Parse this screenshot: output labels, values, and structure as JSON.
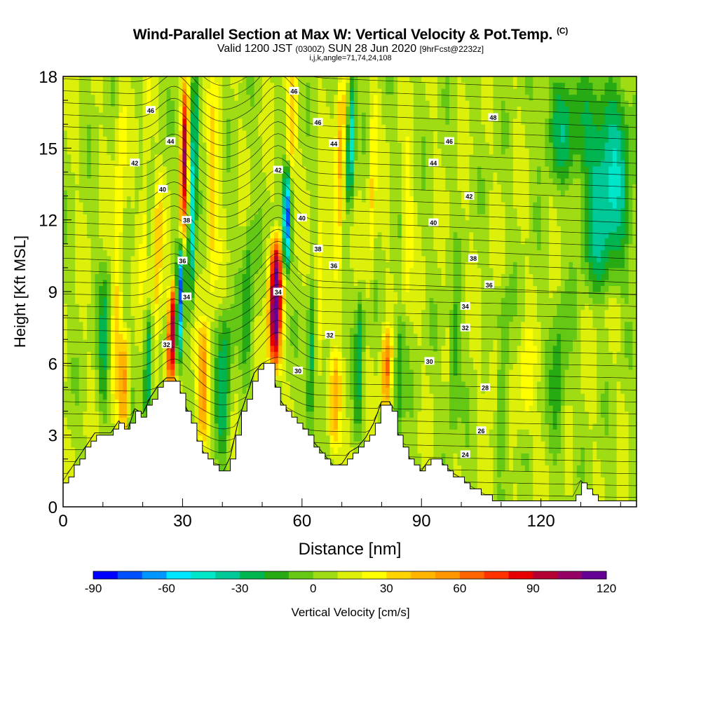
{
  "header": {
    "title": "Wind-Parallel Section at Max W: Vertical Velocity & Pot.Temp.",
    "copyright": "(C)",
    "valid_main": "Valid 1200 JST",
    "valid_utc": "(0300Z)",
    "valid_date": "SUN 28 Jun 2020",
    "forecast": "[9hrFcst@2232z]",
    "params": "i,j,k,angle=71,74,24,108"
  },
  "chart_data": {
    "type": "heatmap",
    "xlabel": "Distance [nm]",
    "ylabel": "Height [Kft MSL]",
    "xlim": [
      0,
      144
    ],
    "ylim": [
      0,
      18
    ],
    "xticks": [
      0,
      30,
      60,
      90,
      120
    ],
    "yticks": [
      0,
      3,
      6,
      9,
      12,
      15,
      18
    ],
    "colorbar": {
      "label": "Vertical Velocity [cm/s]",
      "min": -90,
      "max": 120,
      "step": 10,
      "ticks": [
        -90,
        -60,
        -30,
        0,
        30,
        60,
        90,
        120
      ],
      "colors": [
        "#0000ff",
        "#0050ff",
        "#0096ff",
        "#00e6ff",
        "#00e6c8",
        "#00c896",
        "#00b450",
        "#28aa14",
        "#64c814",
        "#a0dc14",
        "#dcf00a",
        "#ffff00",
        "#ffd200",
        "#ffb400",
        "#ff9600",
        "#ff6400",
        "#ff3200",
        "#e60000",
        "#b40032",
        "#960064",
        "#640096"
      ]
    },
    "terrain": [
      [
        0,
        1.0
      ],
      [
        2,
        1.5
      ],
      [
        4,
        2.0
      ],
      [
        6,
        2.5
      ],
      [
        8,
        3.0
      ],
      [
        12,
        3.0
      ],
      [
        14,
        3.5
      ],
      [
        16,
        3.0
      ],
      [
        18,
        4.0
      ],
      [
        20,
        3.8
      ],
      [
        22,
        4.5
      ],
      [
        24,
        5.0
      ],
      [
        26,
        5.3
      ],
      [
        28,
        5.3
      ],
      [
        30,
        4.5
      ],
      [
        32,
        3.5
      ],
      [
        34,
        2.5
      ],
      [
        36,
        2.0
      ],
      [
        38,
        1.6
      ],
      [
        40,
        1.3
      ],
      [
        42,
        2.0
      ],
      [
        44,
        3.5
      ],
      [
        46,
        4.5
      ],
      [
        48,
        5.5
      ],
      [
        50,
        5.9
      ],
      [
        52,
        5.9
      ],
      [
        54,
        4.5
      ],
      [
        56,
        4.0
      ],
      [
        58,
        3.5
      ],
      [
        60,
        3.2
      ],
      [
        62,
        2.8
      ],
      [
        64,
        2.4
      ],
      [
        66,
        2.0
      ],
      [
        68,
        1.6
      ],
      [
        70,
        1.7
      ],
      [
        72,
        2.2
      ],
      [
        74,
        2.4
      ],
      [
        76,
        2.8
      ],
      [
        78,
        3.4
      ],
      [
        80,
        4.3
      ],
      [
        82,
        4.3
      ],
      [
        84,
        3.0
      ],
      [
        86,
        2.2
      ],
      [
        88,
        1.7
      ],
      [
        90,
        1.4
      ],
      [
        92,
        1.9
      ],
      [
        94,
        1.9
      ],
      [
        96,
        1.6
      ],
      [
        98,
        1.3
      ],
      [
        100,
        1.1
      ],
      [
        102,
        0.8
      ],
      [
        104,
        0.6
      ],
      [
        106,
        0.4
      ],
      [
        108,
        0.3
      ],
      [
        110,
        0.3
      ],
      [
        120,
        0.3
      ],
      [
        128,
        0.3
      ],
      [
        130,
        1.0
      ],
      [
        132,
        0.6
      ],
      [
        134,
        0.3
      ],
      [
        144,
        0.3
      ]
    ],
    "updrafts": [
      {
        "x": 13,
        "h0": 3.5,
        "h1": 18,
        "w": 1.3,
        "amp": 25
      },
      {
        "x": 15,
        "h0": 3.0,
        "h1": 7.0,
        "w": 1.2,
        "amp": 45
      },
      {
        "x": 20,
        "h0": 9.0,
        "h1": 18,
        "w": 1.0,
        "amp": 20
      },
      {
        "x": 23,
        "h0": 5.0,
        "h1": 14,
        "w": 1.2,
        "amp": 30
      },
      {
        "x": 27,
        "h0": 5.3,
        "h1": 9.0,
        "w": 0.9,
        "amp": 95
      },
      {
        "x": 30,
        "h0": 11,
        "h1": 18,
        "w": 0.9,
        "amp": 85
      },
      {
        "x": 35,
        "h0": 3.0,
        "h1": 7.5,
        "w": 1.5,
        "amp": 50
      },
      {
        "x": 37,
        "h0": 8.0,
        "h1": 18,
        "w": 1.5,
        "amp": 25
      },
      {
        "x": 53,
        "h0": 5.9,
        "h1": 11,
        "w": 1.6,
        "amp": 115
      },
      {
        "x": 57,
        "h0": 13,
        "h1": 18,
        "w": 1.2,
        "amp": 30
      },
      {
        "x": 64,
        "h0": 6.0,
        "h1": 13,
        "w": 1.2,
        "amp": 25
      },
      {
        "x": 68,
        "h0": 2.5,
        "h1": 6.0,
        "w": 1.5,
        "amp": 45
      },
      {
        "x": 69,
        "h0": 10,
        "h1": 18,
        "w": 1.2,
        "amp": 40
      },
      {
        "x": 77,
        "h0": 9.0,
        "h1": 18,
        "w": 1.0,
        "amp": 25
      },
      {
        "x": 81,
        "h0": 4.3,
        "h1": 7.0,
        "w": 1.2,
        "amp": 55
      },
      {
        "x": 86,
        "h0": 8.0,
        "h1": 15,
        "w": 1.2,
        "amp": 20
      },
      {
        "x": 108,
        "h0": 4.0,
        "h1": 7.0,
        "w": 1.5,
        "amp": 20
      },
      {
        "x": 116,
        "h0": 3.0,
        "h1": 7.0,
        "w": 2.0,
        "amp": 20
      }
    ],
    "downdrafts": [
      {
        "x": 10,
        "h0": 4.0,
        "h1": 10,
        "w": 1.5,
        "amp": -30
      },
      {
        "x": 21,
        "h0": 3.0,
        "h1": 8.0,
        "w": 1.0,
        "amp": -40
      },
      {
        "x": 29,
        "h0": 6.0,
        "h1": 11,
        "w": 0.8,
        "amp": -75
      },
      {
        "x": 32,
        "h0": 8.0,
        "h1": 18,
        "w": 0.9,
        "amp": -60
      },
      {
        "x": 40,
        "h0": 2.0,
        "h1": 8.0,
        "w": 1.8,
        "amp": -40
      },
      {
        "x": 46,
        "h0": 5.0,
        "h1": 12,
        "w": 1.5,
        "amp": -30
      },
      {
        "x": 56,
        "h0": 10,
        "h1": 14,
        "w": 1.0,
        "amp": -80
      },
      {
        "x": 62,
        "h0": 3.0,
        "h1": 9.0,
        "w": 1.2,
        "amp": -40
      },
      {
        "x": 72,
        "h0": 13,
        "h1": 18,
        "w": 1.0,
        "amp": -60
      },
      {
        "x": 74,
        "h0": 3.0,
        "h1": 9.0,
        "w": 1.0,
        "amp": -35
      },
      {
        "x": 84,
        "h0": 3.0,
        "h1": 8.0,
        "w": 1.3,
        "amp": -30
      },
      {
        "x": 98,
        "h0": 3.0,
        "h1": 9.0,
        "w": 1.5,
        "amp": -25
      },
      {
        "x": 110,
        "h0": 2.0,
        "h1": 9.0,
        "w": 1.5,
        "amp": -25
      },
      {
        "x": 124,
        "h0": 2.0,
        "h1": 9.0,
        "w": 2.0,
        "amp": -25
      },
      {
        "x": 136,
        "h0": 9.0,
        "h1": 18,
        "w": 6.0,
        "amp": -50
      },
      {
        "x": 125,
        "h0": 14,
        "h1": 18,
        "w": 5.0,
        "amp": -30
      }
    ],
    "isentrope_labels": [
      {
        "text": "46",
        "x": 22,
        "y": 16.6
      },
      {
        "text": "44",
        "x": 27,
        "y": 15.3
      },
      {
        "text": "42",
        "x": 18,
        "y": 14.4
      },
      {
        "text": "40",
        "x": 25,
        "y": 13.3
      },
      {
        "text": "38",
        "x": 31,
        "y": 12.0
      },
      {
        "text": "36",
        "x": 30,
        "y": 10.3
      },
      {
        "text": "34",
        "x": 31,
        "y": 8.8
      },
      {
        "text": "32",
        "x": 26,
        "y": 6.8
      },
      {
        "text": "46",
        "x": 58,
        "y": 17.4
      },
      {
        "text": "46",
        "x": 64,
        "y": 16.1
      },
      {
        "text": "44",
        "x": 68,
        "y": 15.2
      },
      {
        "text": "42",
        "x": 54,
        "y": 14.1
      },
      {
        "text": "40",
        "x": 60,
        "y": 12.1
      },
      {
        "text": "38",
        "x": 64,
        "y": 10.8
      },
      {
        "text": "36",
        "x": 68,
        "y": 10.1
      },
      {
        "text": "34",
        "x": 54,
        "y": 9.0
      },
      {
        "text": "32",
        "x": 67,
        "y": 7.2
      },
      {
        "text": "30",
        "x": 59,
        "y": 5.7
      },
      {
        "text": "48",
        "x": 108,
        "y": 16.3
      },
      {
        "text": "46",
        "x": 97,
        "y": 15.3
      },
      {
        "text": "44",
        "x": 93,
        "y": 14.4
      },
      {
        "text": "42",
        "x": 102,
        "y": 13.0
      },
      {
        "text": "40",
        "x": 93,
        "y": 11.9
      },
      {
        "text": "38",
        "x": 103,
        "y": 10.4
      },
      {
        "text": "36",
        "x": 107,
        "y": 9.3
      },
      {
        "text": "34",
        "x": 101,
        "y": 8.4
      },
      {
        "text": "32",
        "x": 101,
        "y": 7.5
      },
      {
        "text": "30",
        "x": 92,
        "y": 6.1
      },
      {
        "text": "28",
        "x": 106,
        "y": 5.0
      },
      {
        "text": "26",
        "x": 105,
        "y": 3.2
      },
      {
        "text": "24",
        "x": 101,
        "y": 2.2
      }
    ]
  }
}
